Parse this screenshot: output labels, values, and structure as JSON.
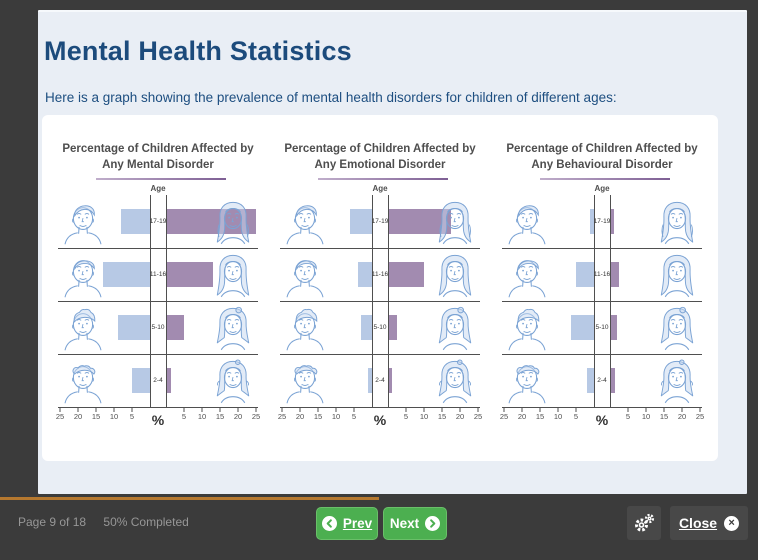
{
  "slide": {
    "title": "Mental Health Statistics",
    "subtitle": "Here is a graph showing the prevalence of mental health disorders for children of different ages:"
  },
  "chart_data": [
    {
      "type": "bar",
      "variant": "population-pyramid",
      "title": "Percentage of Children Affected by Any Mental Disorder",
      "axis_label": "Age",
      "unit_label": "%",
      "categories": [
        "17-19",
        "11-16",
        "5-10",
        "2-4"
      ],
      "series": [
        {
          "name": "boys",
          "side": "left",
          "color": "#b7c9e5",
          "values": [
            8,
            13,
            9,
            5
          ]
        },
        {
          "name": "girls",
          "side": "right",
          "color": "#a28bb0",
          "values": [
            25,
            13,
            5,
            1.5
          ]
        }
      ],
      "xlim": [
        0,
        25
      ],
      "axis_ticks": [
        25,
        20,
        15,
        10,
        5
      ],
      "grid": false,
      "legend": "none"
    },
    {
      "type": "bar",
      "variant": "population-pyramid",
      "title": "Percentage of Children Affected by Any Emotional Disorder",
      "axis_label": "Age",
      "unit_label": "%",
      "categories": [
        "17-19",
        "11-16",
        "5-10",
        "2-4"
      ],
      "series": [
        {
          "name": "boys",
          "side": "left",
          "color": "#b7c9e5",
          "values": [
            6,
            4,
            3,
            1
          ]
        },
        {
          "name": "girls",
          "side": "right",
          "color": "#a28bb0",
          "values": [
            17.5,
            10,
            2.5,
            1
          ]
        }
      ],
      "xlim": [
        0,
        25
      ],
      "axis_ticks": [
        25,
        20,
        15,
        10,
        5
      ],
      "grid": false,
      "legend": "none"
    },
    {
      "type": "bar",
      "variant": "population-pyramid",
      "title": "Percentage of Children Affected by Any Behavioural Disorder",
      "axis_label": "Age",
      "unit_label": "%",
      "categories": [
        "17-19",
        "11-16",
        "5-10",
        "2-4"
      ],
      "series": [
        {
          "name": "boys",
          "side": "left",
          "color": "#b7c9e5",
          "values": [
            1,
            5,
            6.5,
            2
          ]
        },
        {
          "name": "girls",
          "side": "right",
          "color": "#a28bb0",
          "values": [
            1,
            2.5,
            2,
            1.5
          ]
        }
      ],
      "xlim": [
        0,
        25
      ],
      "axis_ticks": [
        25,
        20,
        15,
        10,
        5
      ],
      "grid": false,
      "legend": "none"
    }
  ],
  "footer": {
    "page_status": "Page 9 of 18",
    "completion_status": "50% Completed",
    "progress_percent": 50,
    "prev_label": "Prev",
    "next_label": "Next",
    "close_label": "Close",
    "icons": {
      "prev": "chevron-left-circle-icon",
      "next": "chevron-right-circle-icon",
      "settings": "cogs-icon",
      "close": "x-circle-icon"
    }
  },
  "colors": {
    "page_background": "#3b3b3b",
    "slide_background": "#e9eef5",
    "panel_background": "#ffffff",
    "title_text": "#1c4b7c",
    "chart_title_text": "#4e4e4e",
    "bar_boys": "#b7c9e5",
    "bar_girls": "#a28bb0",
    "title_underline": "#8a6f9e",
    "axis_line": "#4f4f4f",
    "button_green": "#4caf50",
    "progress_orange": "#b5782f",
    "face_line_art": "#7ba3d4"
  }
}
